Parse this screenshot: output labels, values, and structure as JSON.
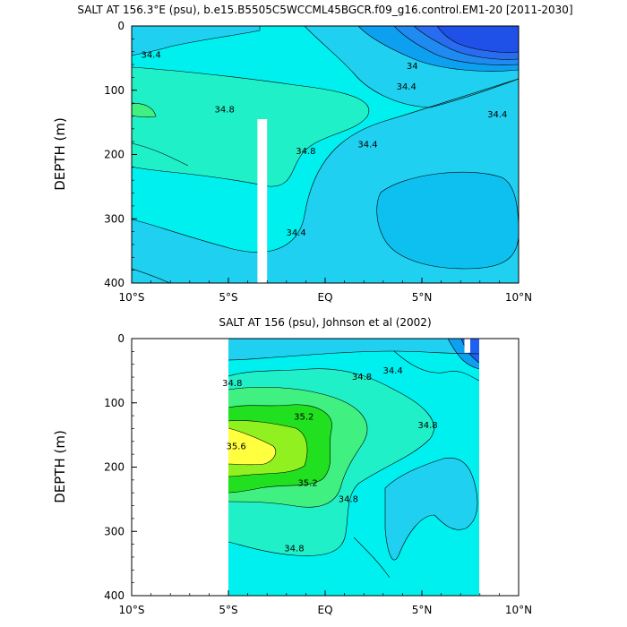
{
  "chart_data": [
    {
      "type": "contour",
      "title": "SALT AT 156.3°E (psu), b.e15.B5505C5WCCML45BGCR.f09_g16.control.EM1-20 [2011-2030]",
      "ylabel": "DEPTH (m)",
      "x_ticks": [
        "10°S",
        "5°S",
        "EQ",
        "5°N",
        "10°N"
      ],
      "y_ticks": [
        "0",
        "100",
        "200",
        "300",
        "400"
      ],
      "xlim": [
        -10,
        10
      ],
      "ylim": [
        400,
        0
      ],
      "colors": {
        "34.0": "#2a6cf0",
        "34.2": "#0da0f0",
        "34.4": "#20d0f0",
        "34.6": "#00f0f0",
        "34.8": "#20f0c8",
        "35.0": "#40f080"
      },
      "contour_labels": [
        {
          "value": "34.4",
          "x": -9.0,
          "y": 45
        },
        {
          "value": "34.8",
          "x": -5.2,
          "y": 130
        },
        {
          "value": "34.8",
          "x": -1.0,
          "y": 195
        },
        {
          "value": "34.4",
          "x": 2.2,
          "y": 185
        },
        {
          "value": "34.4",
          "x": -1.5,
          "y": 322
        },
        {
          "value": "34",
          "x": 4.5,
          "y": 63
        },
        {
          "value": "34.4",
          "x": 4.2,
          "y": 95
        },
        {
          "value": "34.4",
          "x": 8.9,
          "y": 138
        }
      ],
      "missing_strip": {
        "x_from": -3.5,
        "x_to": -3.0,
        "depth_from": 145,
        "depth_to": 400
      }
    },
    {
      "type": "contour",
      "title": "SALT AT 156 (psu), Johnson et al (2002)",
      "ylabel": "DEPTH (m)",
      "x_ticks": [
        "10°S",
        "5°S",
        "EQ",
        "5°N",
        "10°N"
      ],
      "y_ticks": [
        "0",
        "100",
        "200",
        "300",
        "400"
      ],
      "xlim": [
        -10,
        10
      ],
      "ylim": [
        400,
        0
      ],
      "data_xrange": [
        -5,
        8
      ],
      "colors": {
        "34.0": "#1f60f0",
        "34.4": "#20d0f0",
        "34.6": "#00f0f0",
        "34.8": "#20f0c8",
        "35.0": "#40f080",
        "35.2": "#20e020",
        "35.4": "#90f020",
        "35.6": "#ffff40"
      },
      "contour_labels": [
        {
          "value": "34.8",
          "x": -4.8,
          "y": 70
        },
        {
          "value": "34.8",
          "x": 1.9,
          "y": 60
        },
        {
          "value": "34.4",
          "x": 3.5,
          "y": 50
        },
        {
          "value": "35.2",
          "x": -1.1,
          "y": 122
        },
        {
          "value": "34.8",
          "x": 5.3,
          "y": 135
        },
        {
          "value": "35.6",
          "x": -4.6,
          "y": 168
        },
        {
          "value": "35.2",
          "x": -0.9,
          "y": 225
        },
        {
          "value": "34.8",
          "x": 1.2,
          "y": 250
        },
        {
          "value": "34.8",
          "x": -1.6,
          "y": 327
        }
      ],
      "missing_strip": {
        "x_from": 7.2,
        "x_to": 7.5,
        "depth_from": 0,
        "depth_to": 22
      }
    }
  ]
}
